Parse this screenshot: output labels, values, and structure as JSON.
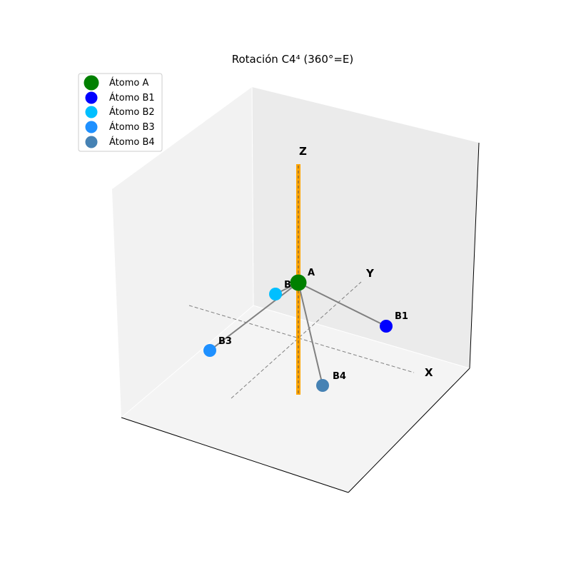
{
  "title": "Rotación C4⁴ (360°=E)",
  "axes": {
    "x_label": "X",
    "y_label": "Y",
    "z_label": "Z"
  },
  "colors": {
    "rotation_axis": "#ffa500",
    "bond": "#808080",
    "guide": "#808080",
    "pane_left": "#f2f2f2",
    "pane_back": "#ebebeb",
    "pane_floor": "#f4f4f4"
  },
  "atoms": [
    {
      "id": "A",
      "label": "A",
      "legend": "Átomo A",
      "color": "#008000",
      "size": "large"
    },
    {
      "id": "B1",
      "label": "B1",
      "legend": "Átomo B1",
      "color": "#0000ff",
      "size": "small"
    },
    {
      "id": "B2",
      "label": "B",
      "legend": "Átomo B2",
      "color": "#00bfff",
      "size": "small"
    },
    {
      "id": "B3",
      "label": "B3",
      "legend": "Átomo B3",
      "color": "#1e90ff",
      "size": "small"
    },
    {
      "id": "B4",
      "label": "B4",
      "legend": "Átomo B4",
      "color": "#4682b4",
      "size": "small"
    }
  ],
  "bonds": [
    [
      "A",
      "B1"
    ],
    [
      "A",
      "B2"
    ],
    [
      "A",
      "B3"
    ],
    [
      "A",
      "B4"
    ]
  ],
  "legend": {
    "placement": "top-left"
  }
}
